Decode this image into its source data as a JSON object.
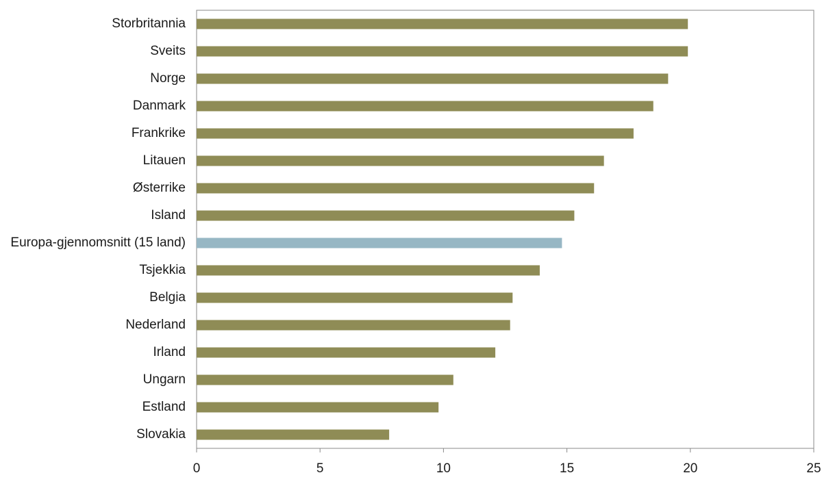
{
  "chart_data": {
    "type": "hbar",
    "categories": [
      "Storbritannia",
      "Sveits",
      "Norge",
      "Danmark",
      "Frankrike",
      "Litauen",
      "Østerrike",
      "Island",
      "Europa-gjennomsnitt (15 land)",
      "Tsjekkia",
      "Belgia",
      "Nederland",
      "Irland",
      "Ungarn",
      "Estland",
      "Slovakia"
    ],
    "values": [
      19.9,
      19.9,
      19.1,
      18.5,
      17.7,
      16.5,
      16.1,
      15.3,
      14.8,
      13.9,
      12.8,
      12.7,
      12.1,
      10.4,
      9.8,
      7.8
    ],
    "colors": [
      "#8f8c56",
      "#8f8c56",
      "#8f8c56",
      "#8f8c56",
      "#8f8c56",
      "#8f8c56",
      "#8f8c56",
      "#8f8c56",
      "#97b7c4",
      "#8f8c56",
      "#8f8c56",
      "#8f8c56",
      "#8f8c56",
      "#8f8c56",
      "#8f8c56",
      "#8f8c56"
    ],
    "xlim": [
      0,
      25
    ],
    "xticks": [
      0,
      5,
      10,
      15,
      20,
      25
    ],
    "grid": false
  }
}
